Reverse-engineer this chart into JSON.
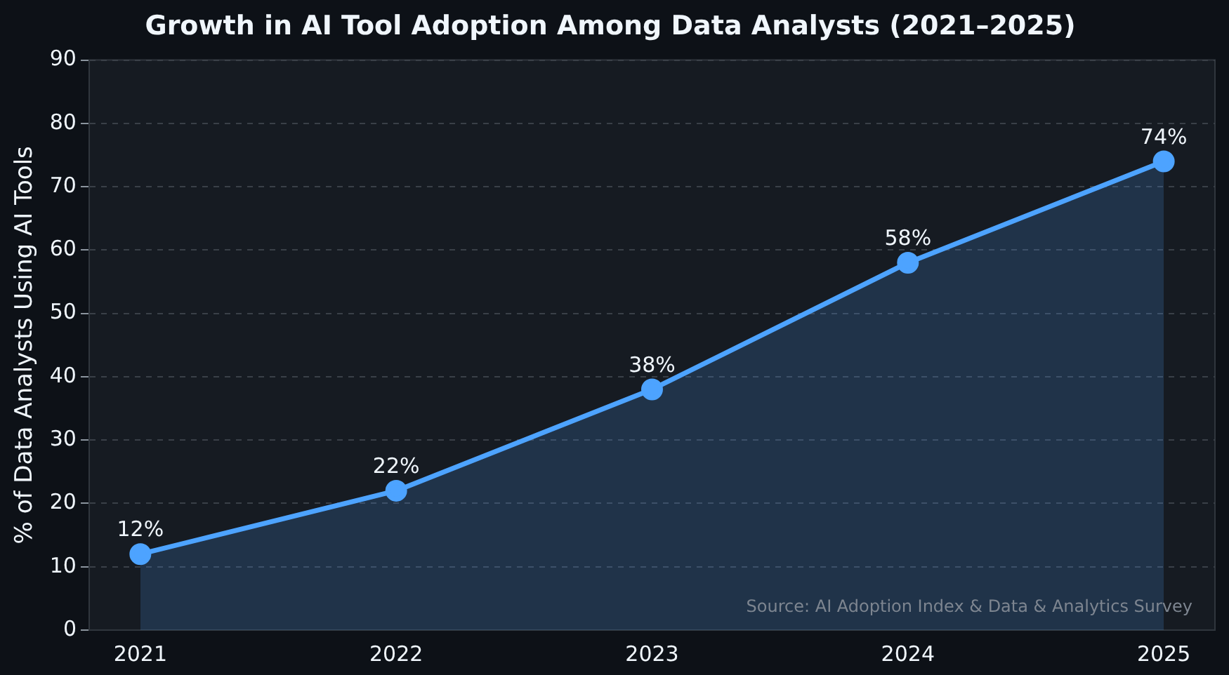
{
  "chart_data": {
    "type": "area",
    "title": "Growth in AI Tool Adoption Among Data Analysts (2021–2025)",
    "ylabel": "% of Data Analysts Using AI Tools",
    "x": [
      2021,
      2022,
      2023,
      2024,
      2025
    ],
    "series": [
      {
        "color": "#4da3ff",
        "values": [
          12,
          22,
          38,
          58,
          74
        ],
        "value_labels": [
          "12%",
          "22%",
          "38%",
          "58%",
          "74%"
        ]
      }
    ],
    "xlim": [
      2020.8,
      2025.2
    ],
    "xticks": [
      2021,
      2022,
      2023,
      2024,
      2025
    ],
    "ylim": [
      0,
      90
    ],
    "yticks": [
      0,
      10,
      20,
      30,
      40,
      50,
      60,
      70,
      80,
      90
    ],
    "grid": "y",
    "legend": false,
    "marker": "circle",
    "line_style": "solid",
    "annotations": [
      "Source: AI Adoption Index & Data & Analytics Survey"
    ]
  }
}
